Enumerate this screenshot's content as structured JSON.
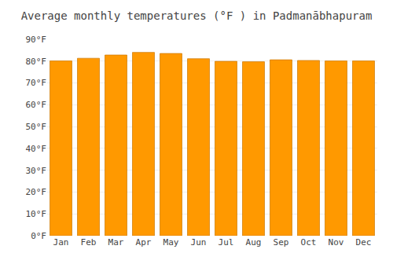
{
  "chart_data": {
    "type": "bar",
    "title": "Average monthly temperatures (°F ) in Padmanābhapuram",
    "categories": [
      "Jan",
      "Feb",
      "Mar",
      "Apr",
      "May",
      "Jun",
      "Jul",
      "Aug",
      "Sep",
      "Oct",
      "Nov",
      "Dec"
    ],
    "values": [
      80.1,
      81.3,
      82.8,
      84.0,
      83.5,
      81.1,
      79.9,
      79.7,
      80.6,
      80.3,
      80.1,
      80.1
    ],
    "color": "#FF9900",
    "ylim": [
      0,
      90
    ],
    "yticks": [
      {
        "value": 0,
        "label": "0°F"
      },
      {
        "value": 10,
        "label": "10°F"
      },
      {
        "value": 20,
        "label": "20°F"
      },
      {
        "value": 30,
        "label": "30°F"
      },
      {
        "value": 40,
        "label": "40°F"
      },
      {
        "value": 50,
        "label": "50°F"
      },
      {
        "value": 60,
        "label": "60°F"
      },
      {
        "value": 70,
        "label": "70°F"
      },
      {
        "value": 80,
        "label": "80°F"
      },
      {
        "value": 90,
        "label": "90°F"
      }
    ],
    "grid": true
  }
}
